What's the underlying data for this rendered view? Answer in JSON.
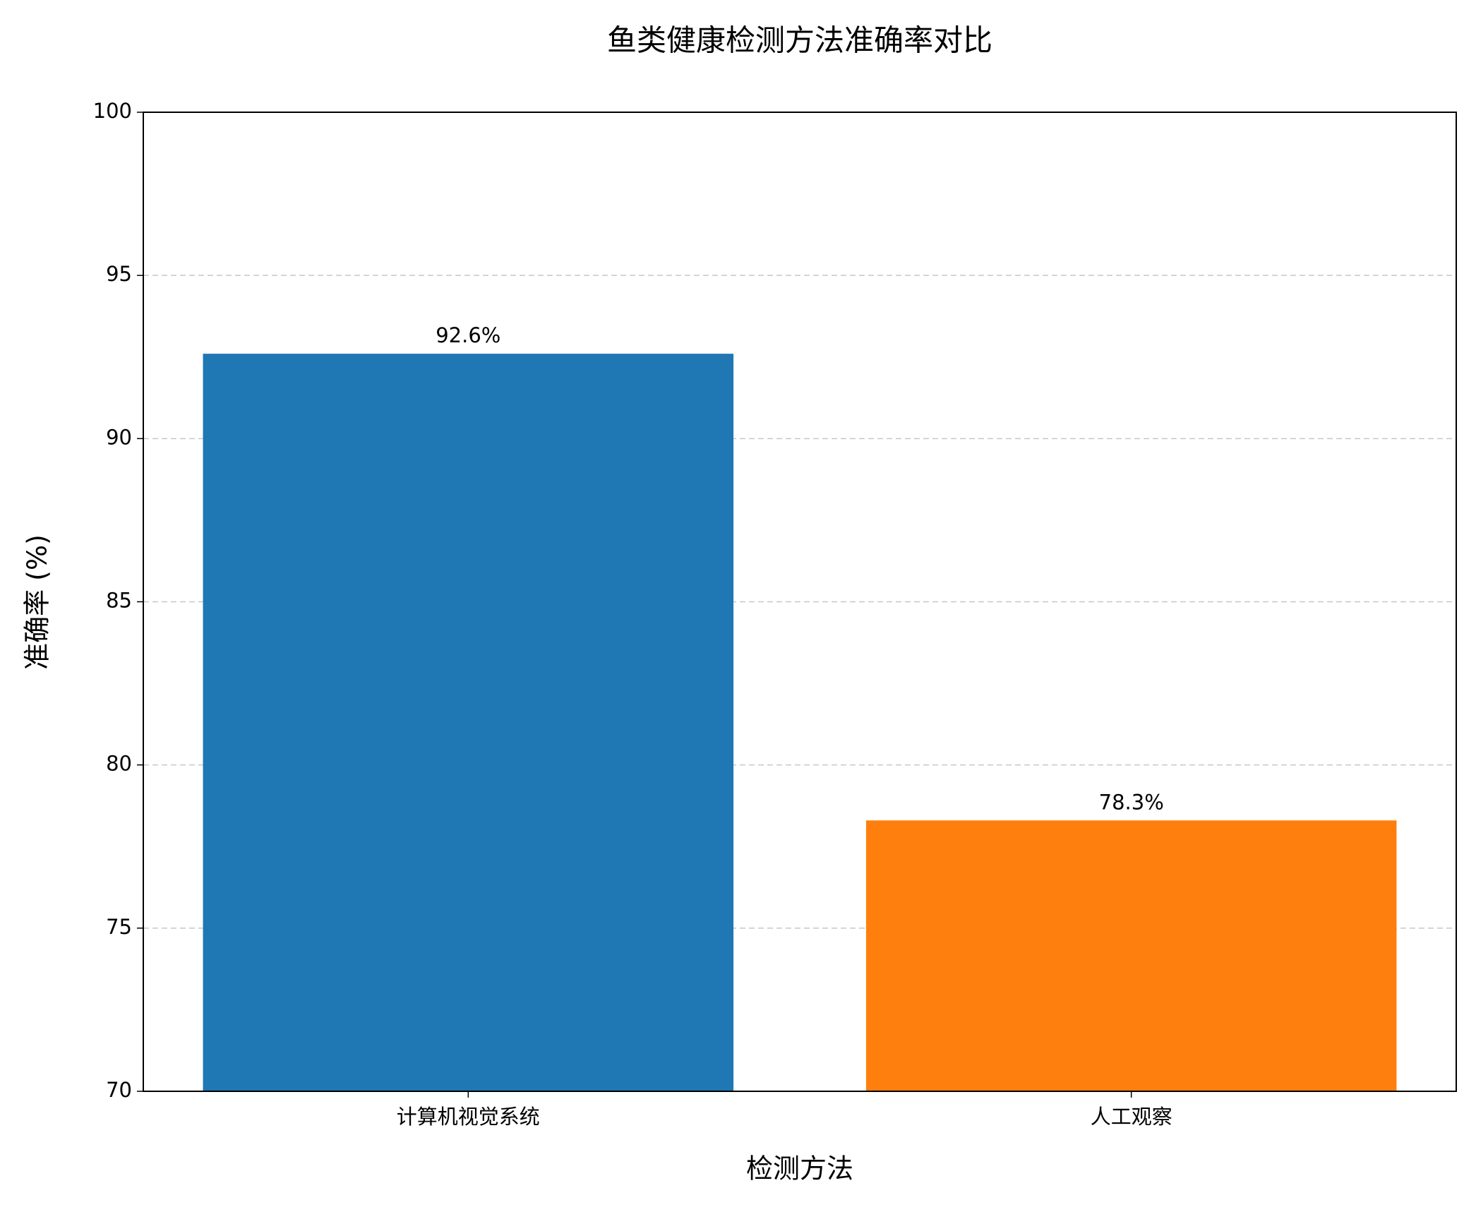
{
  "chart_data": {
    "type": "bar",
    "title": "鱼类健康检测方法准确率对比",
    "x_label": "检测方法",
    "y_label": "准确率 (%)",
    "categories": [
      "计算机视觉系统",
      "人工观察"
    ],
    "values": [
      92.6,
      78.3
    ],
    "value_labels": [
      "92.6%",
      "78.3%"
    ],
    "colors": [
      "#1f77b4",
      "#ff7f0e"
    ],
    "ylim": [
      70,
      100
    ],
    "yticks": [
      70,
      75,
      80,
      85,
      90,
      95,
      100
    ],
    "grid": true
  }
}
